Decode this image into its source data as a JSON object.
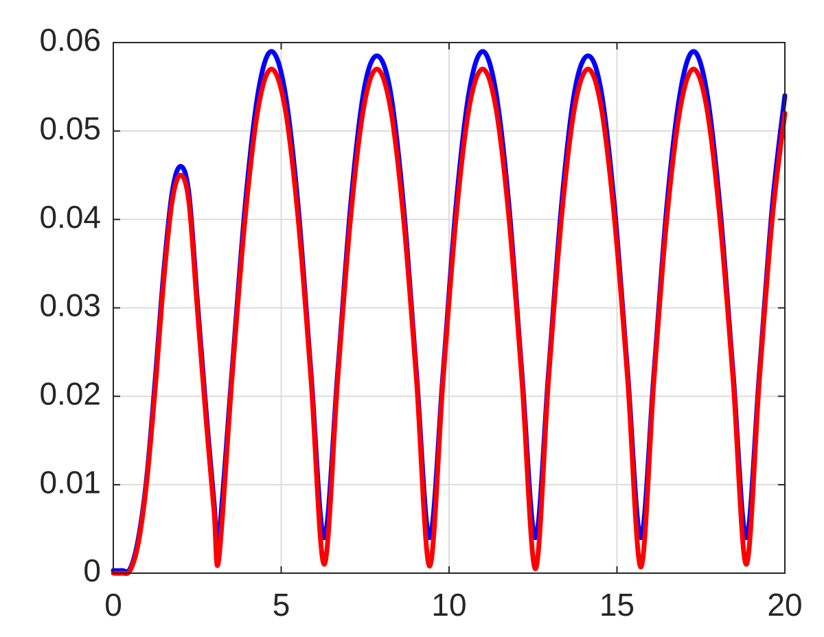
{
  "chart_data": {
    "type": "line",
    "x": [
      0,
      0.25,
      0.5,
      0.75,
      1,
      1.25,
      1.5,
      1.75,
      2,
      2.25,
      2.5,
      2.75,
      3,
      3.14,
      3.53,
      3.93,
      4.32,
      4.71,
      5.11,
      5.5,
      5.89,
      6.28,
      6.68,
      7.07,
      7.46,
      7.85,
      8.25,
      8.64,
      9.03,
      9.42,
      9.82,
      10.21,
      10.6,
      11.0,
      11.39,
      11.78,
      12.17,
      12.57,
      12.96,
      13.35,
      13.74,
      14.14,
      14.53,
      14.92,
      15.32,
      15.71,
      16.1,
      16.49,
      16.89,
      17.28,
      17.67,
      18.06,
      18.46,
      18.85,
      19.24,
      19.63,
      20
    ],
    "series": [
      {
        "color": "#0000ff",
        "values": [
          0.0003,
          0.0003,
          0.0005,
          0.004,
          0.011,
          0.022,
          0.034,
          0.043,
          0.046,
          0.043,
          0.031,
          0.019,
          0.008,
          0.004,
          0.0226,
          0.0417,
          0.0545,
          0.059,
          0.0545,
          0.0417,
          0.0226,
          0.004,
          0.0226,
          0.0417,
          0.0545,
          0.0585,
          0.0545,
          0.0417,
          0.0226,
          0.004,
          0.0226,
          0.0417,
          0.0545,
          0.059,
          0.0545,
          0.0417,
          0.0226,
          0.004,
          0.0226,
          0.0417,
          0.0545,
          0.0585,
          0.0545,
          0.0417,
          0.0226,
          0.004,
          0.0226,
          0.0417,
          0.0545,
          0.059,
          0.0545,
          0.0417,
          0.0226,
          0.004,
          0.0226,
          0.0417,
          0.054
        ]
      },
      {
        "color": "#ff0000",
        "values": [
          0,
          0,
          0.0003,
          0.0035,
          0.0105,
          0.021,
          0.033,
          0.042,
          0.045,
          0.042,
          0.03,
          0.018,
          0.007,
          0.0015,
          0.0218,
          0.0403,
          0.0527,
          0.057,
          0.0527,
          0.0403,
          0.0218,
          0.001,
          0.0218,
          0.0403,
          0.0527,
          0.057,
          0.0527,
          0.0403,
          0.0218,
          0.0008,
          0.0218,
          0.0403,
          0.0527,
          0.057,
          0.0527,
          0.0403,
          0.0218,
          0.0005,
          0.0218,
          0.0403,
          0.0527,
          0.057,
          0.0527,
          0.0403,
          0.0218,
          0.0007,
          0.0218,
          0.0403,
          0.0527,
          0.057,
          0.0527,
          0.0403,
          0.0218,
          0.001,
          0.0218,
          0.0403,
          0.052
        ]
      }
    ],
    "xlim": [
      0,
      20
    ],
    "xticks": [
      0,
      5,
      10,
      15,
      20
    ],
    "ylim": [
      0,
      0.06
    ],
    "yticks": [
      0,
      0.01,
      0.02,
      0.03,
      0.04,
      0.05,
      0.06
    ],
    "grid": true
  }
}
